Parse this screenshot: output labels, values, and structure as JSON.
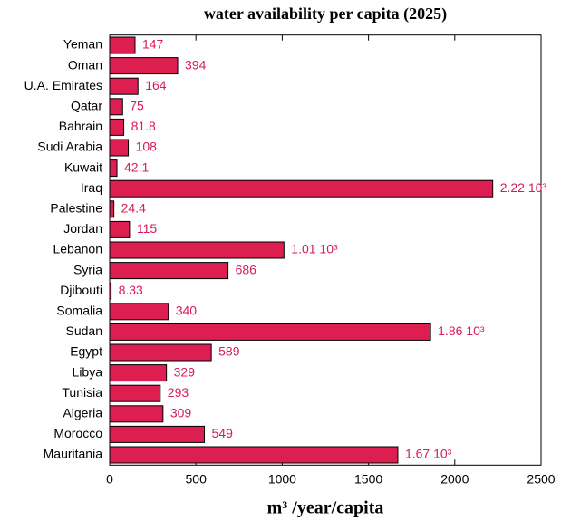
{
  "chart_data": {
    "type": "bar",
    "orientation": "horizontal",
    "title": "water availability per capita (2025)",
    "x_label": "m³ /year/capita",
    "categories": [
      "Yeman",
      "Oman",
      "U.A. Emirates",
      "Qatar",
      "Bahrain",
      "Sudi Arabia",
      "Kuwait",
      "Iraq",
      "Palestine",
      "Jordan",
      "Lebanon",
      "Syria",
      "Djibouti",
      "Somalia",
      "Sudan",
      "Egypt",
      "Libya",
      "Tunisia",
      "Algeria",
      "Morocco",
      "Mauritania"
    ],
    "values": [
      147,
      394,
      164,
      75,
      81.8,
      108,
      42.1,
      2220,
      24.4,
      115,
      1010,
      686,
      8.33,
      340,
      1860,
      589,
      329,
      293,
      309,
      549,
      1670
    ],
    "value_labels": [
      "147",
      "394",
      "164",
      "75",
      "81.8",
      "108",
      "42.1",
      "2.22 10³",
      "24.4",
      "115",
      "1.01 10³",
      "686",
      "8.33",
      "340",
      "1.86 10³",
      "589",
      "329",
      "293",
      "309",
      "549",
      "1.67 10³"
    ],
    "color": "#dc1e50",
    "label_color": "#d81b5a",
    "xlim": [
      0,
      2500
    ],
    "xticks": [
      0,
      500,
      1000,
      1500,
      2000,
      2500
    ]
  }
}
